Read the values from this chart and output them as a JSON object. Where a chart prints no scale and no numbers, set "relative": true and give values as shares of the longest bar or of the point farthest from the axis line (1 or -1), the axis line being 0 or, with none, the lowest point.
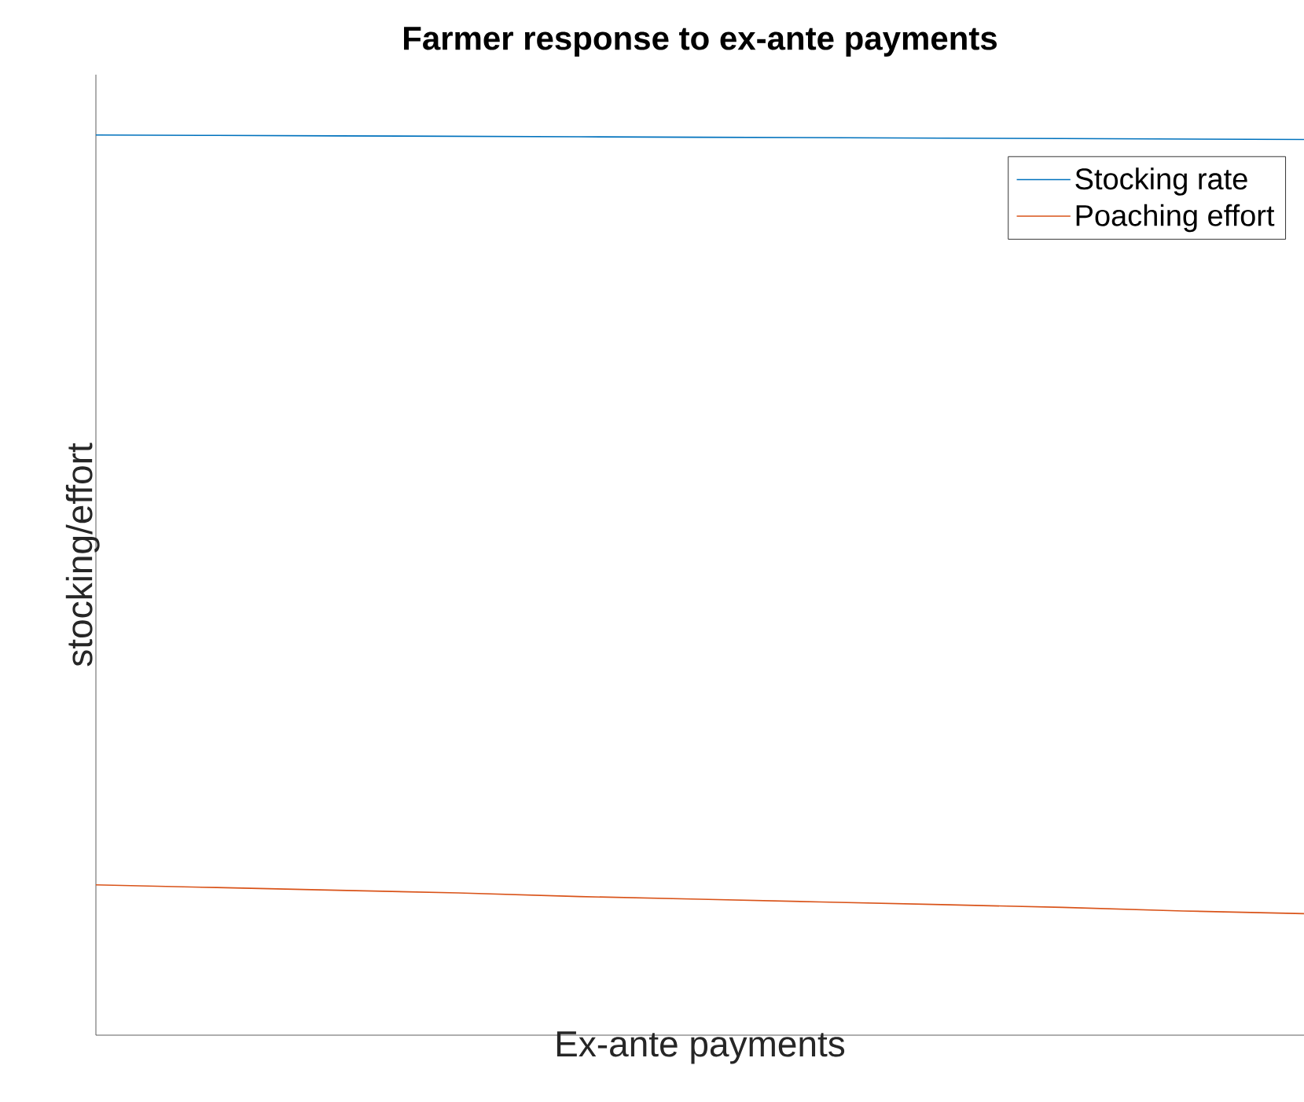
{
  "chart_data": {
    "type": "line",
    "title": "Farmer response to ex-ante payments",
    "xlabel": "Ex-ante payments",
    "ylabel": "stocking/effort",
    "relative": true,
    "legend": "top right",
    "categories": [
      null,
      null,
      null,
      null,
      null,
      null,
      null,
      null,
      null,
      null,
      null
    ],
    "series": [
      {
        "name": "Stocking rate",
        "color": "#0072bd",
        "values": [
          1,
          0.9995,
          0.999,
          0.9985,
          0.998,
          0.9975,
          0.997,
          0.9965,
          0.996,
          0.9955,
          0.995
        ]
      },
      {
        "name": "Poaching effort",
        "color": "#d95319",
        "values": [
          0.167,
          0.164,
          0.161,
          0.158,
          0.154,
          0.151,
          0.148,
          0.145,
          0.142,
          0.138,
          0.135
        ]
      }
    ]
  }
}
